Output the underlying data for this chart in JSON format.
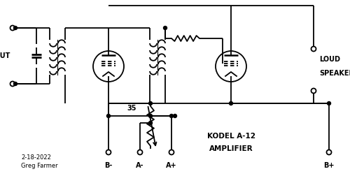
{
  "bg_color": "#ffffff",
  "line_color": "#000000",
  "line_width": 1.3,
  "fig_width": 5.0,
  "fig_height": 2.52,
  "dpi": 100,
  "labels": {
    "input": "INPUT",
    "loud_speaker_1": "LOUD",
    "loud_speaker_2": "SPEAKER",
    "kodel": "KODEL A-12",
    "amplifier": "AMPLIFIER",
    "date": "2-18-2022",
    "author": "Greg Farmer",
    "B_minus": "B-",
    "A_minus": "A-",
    "A_plus": "A+",
    "B_plus": "B+",
    "resistor_val": "35"
  }
}
